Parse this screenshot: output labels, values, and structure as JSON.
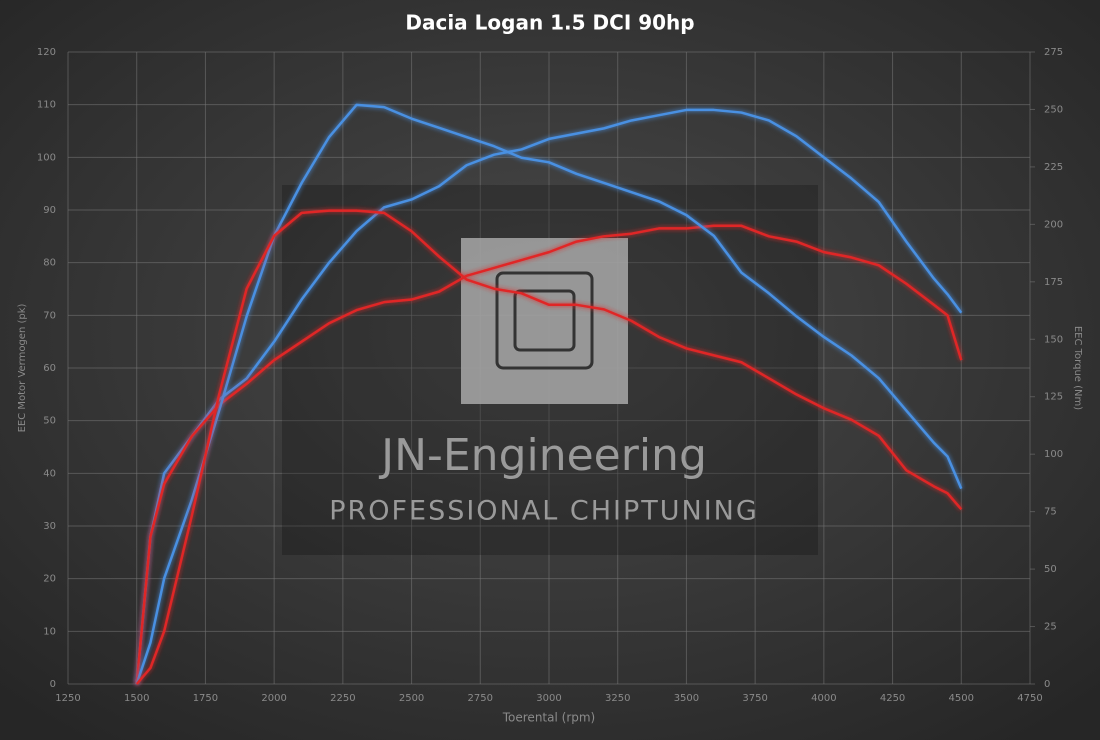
{
  "chart_data": {
    "type": "line",
    "title": "Dacia Logan 1.5 DCI 90hp",
    "x_label": "Toerental (rpm)",
    "y_label": "EEC Motor Vermogen (pk)",
    "y2_label": "EEC Torque (Nm)",
    "watermark": {
      "title": "JN-Engineering",
      "subtitle": "PROFESSIONAL CHIPTUNING"
    },
    "x": [
      1500,
      1550,
      1600,
      1700,
      1800,
      1900,
      2000,
      2100,
      2200,
      2300,
      2400,
      2500,
      2600,
      2700,
      2800,
      2900,
      3000,
      3100,
      3200,
      3300,
      3400,
      3500,
      3600,
      3700,
      3800,
      3900,
      4000,
      4100,
      4200,
      4300,
      4400,
      4450,
      4500
    ],
    "series": [
      {
        "color": "#4a90e2",
        "values": [
          0,
          28,
          40,
          47,
          54,
          58,
          65,
          73,
          80,
          86,
          90.5,
          92,
          94.5,
          98.5,
          100.5,
          101.5,
          103.5,
          104.5,
          105.5,
          107,
          108,
          109,
          109,
          108.5,
          107,
          104,
          100,
          96,
          91.5,
          84,
          77,
          74,
          70.5
        ]
      },
      {
        "color": "#e02828",
        "values": [
          0,
          28,
          38,
          47,
          53,
          57,
          61.5,
          65,
          68.5,
          71,
          72.5,
          73,
          74.5,
          77.5,
          79,
          80.5,
          82,
          84,
          85,
          85.5,
          86.5,
          86.5,
          87,
          87,
          85,
          84,
          82,
          81,
          79.5,
          76,
          72,
          70,
          61.5
        ]
      },
      {
        "color": "#4a90e2",
        "axis": "y2",
        "values": [
          0,
          18,
          46,
          80,
          119,
          160,
          195,
          218,
          238,
          252,
          251,
          246,
          242,
          238,
          234,
          229,
          227,
          222,
          218,
          214,
          210,
          204,
          195,
          179,
          170,
          160,
          151,
          143,
          133,
          119,
          105,
          99,
          85
        ]
      },
      {
        "color": "#e02828",
        "axis": "y2",
        "values": [
          0,
          7,
          23,
          73,
          126,
          172,
          195,
          205,
          206,
          206,
          205,
          197,
          186,
          176,
          172,
          170,
          165,
          165,
          163,
          158,
          151,
          146,
          143,
          140,
          133,
          126,
          120,
          115,
          108,
          93,
          86,
          83,
          76
        ]
      }
    ],
    "xlim": [
      1250,
      4750
    ],
    "xticks": [
      1250,
      1500,
      1750,
      2000,
      2250,
      2500,
      2750,
      3000,
      3250,
      3500,
      3750,
      4000,
      4250,
      4500,
      4750
    ],
    "ylim": [
      0,
      120
    ],
    "yticks": [
      0,
      10,
      20,
      30,
      40,
      50,
      60,
      70,
      80,
      90,
      100,
      110,
      120
    ],
    "y2lim": [
      0,
      275
    ],
    "y2ticks": [
      0,
      25,
      50,
      75,
      100,
      125,
      150,
      175,
      200,
      225,
      250,
      275
    ],
    "grid": true
  }
}
